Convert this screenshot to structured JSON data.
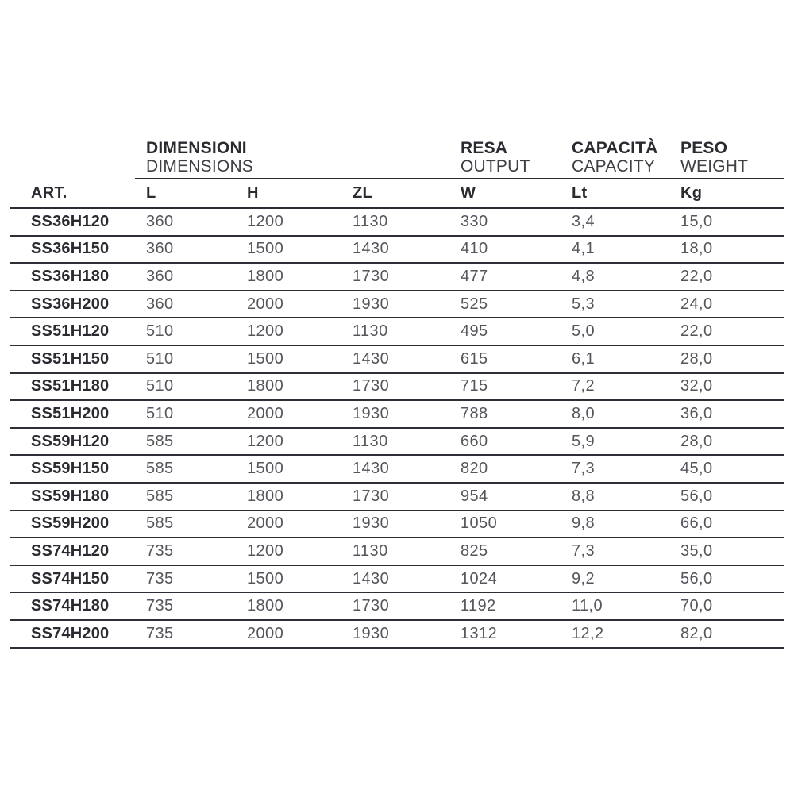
{
  "table": {
    "groups": [
      {
        "title": "DIMENSIONI",
        "subtitle": "DIMENSIONS"
      },
      {
        "title": "RESA",
        "subtitle": "OUTPUT"
      },
      {
        "title": "CAPACITÀ",
        "subtitle": "CAPACITY"
      },
      {
        "title": "PESO",
        "subtitle": "WEIGHT"
      }
    ],
    "columns": [
      "ART.",
      "L",
      "H",
      "ZL",
      "W",
      "Lt",
      "Kg"
    ],
    "rows": [
      [
        "SS36H120",
        "360",
        "1200",
        "1130",
        "330",
        "3,4",
        "15,0"
      ],
      [
        "SS36H150",
        "360",
        "1500",
        "1430",
        "410",
        "4,1",
        "18,0"
      ],
      [
        "SS36H180",
        "360",
        "1800",
        "1730",
        "477",
        "4,8",
        "22,0"
      ],
      [
        "SS36H200",
        "360",
        "2000",
        "1930",
        "525",
        "5,3",
        "24,0"
      ],
      [
        "SS51H120",
        "510",
        "1200",
        "1130",
        "495",
        "5,0",
        "22,0"
      ],
      [
        "SS51H150",
        "510",
        "1500",
        "1430",
        "615",
        "6,1",
        "28,0"
      ],
      [
        "SS51H180",
        "510",
        "1800",
        "1730",
        "715",
        "7,2",
        "32,0"
      ],
      [
        "SS51H200",
        "510",
        "2000",
        "1930",
        "788",
        "8,0",
        "36,0"
      ],
      [
        "SS59H120",
        "585",
        "1200",
        "1130",
        "660",
        "5,9",
        "28,0"
      ],
      [
        "SS59H150",
        "585",
        "1500",
        "1430",
        "820",
        "7,3",
        "45,0"
      ],
      [
        "SS59H180",
        "585",
        "1800",
        "1730",
        "954",
        "8,8",
        "56,0"
      ],
      [
        "SS59H200",
        "585",
        "2000",
        "1930",
        "1050",
        "9,8",
        "66,0"
      ],
      [
        "SS74H120",
        "735",
        "1200",
        "1130",
        "825",
        "7,3",
        "35,0"
      ],
      [
        "SS74H150",
        "735",
        "1500",
        "1430",
        "1024",
        "9,2",
        "56,0"
      ],
      [
        "SS74H180",
        "735",
        "1800",
        "1730",
        "1192",
        "11,0",
        "70,0"
      ],
      [
        "SS74H200",
        "735",
        "2000",
        "1930",
        "1312",
        "12,2",
        "82,0"
      ]
    ]
  },
  "colors": {
    "background": "#ffffff",
    "line": "#2b2b33",
    "header_text": "#2a2a31",
    "subtitle_text": "#3e3e45",
    "data_text": "#55555c"
  }
}
